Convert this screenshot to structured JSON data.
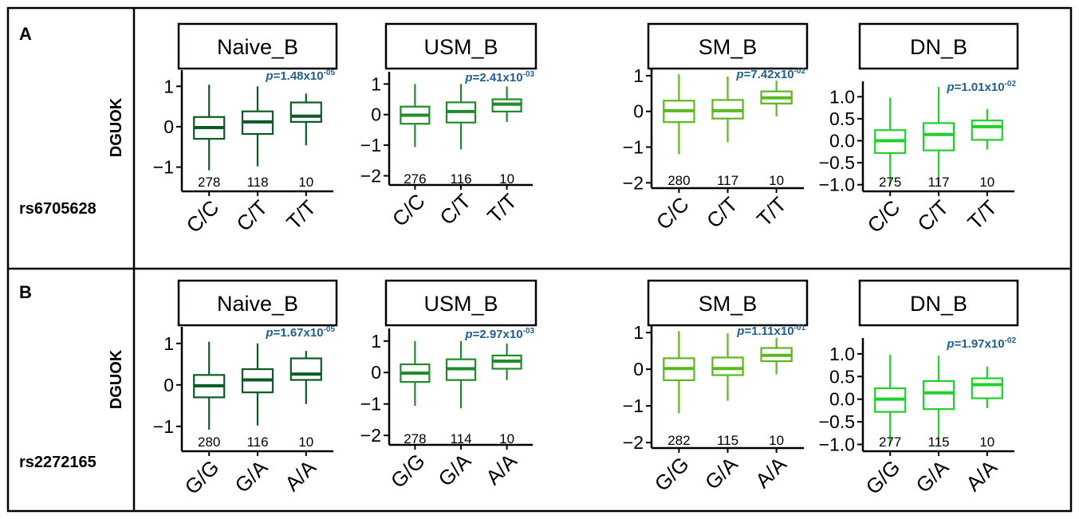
{
  "figure": {
    "colors": {
      "Naive_B": "#0b5b25",
      "USM_B": "#1f8c2c",
      "SM_B": "#5cb81f",
      "DN_B": "#1fd12a",
      "pvalue": "#1f5f8f",
      "border": "#000000"
    },
    "panels": [
      {
        "letter": "A",
        "y_gene_label": "DGUOK",
        "snp": "rs6705628",
        "x_tick_labels": [
          "C/C",
          "C/T",
          "T/T"
        ]
      },
      {
        "letter": "B",
        "y_gene_label": "DGUOK",
        "snp": "rs2272165",
        "x_tick_labels": [
          "G/G",
          "G/A",
          "A/A"
        ]
      }
    ]
  },
  "chart_data": [
    {
      "panel": "A",
      "type": "box",
      "title": "Naive_B",
      "ylabel": "DGUOK",
      "p_value": "1.48x10",
      "p_exp": "-05",
      "categories": [
        "C/C",
        "C/T",
        "T/T"
      ],
      "counts": [
        "278",
        "118",
        "10"
      ],
      "ylim": [
        -1.6,
        1.4
      ],
      "yticks": [
        -1,
        0,
        1
      ],
      "ytick_labels": [
        "−1",
        "0",
        "1"
      ],
      "boxes": [
        {
          "min": -1.08,
          "q1": -0.3,
          "median": -0.02,
          "q3": 0.24,
          "max": 1.04
        },
        {
          "min": -0.98,
          "q1": -0.18,
          "median": 0.12,
          "q3": 0.38,
          "max": 1.0
        },
        {
          "min": -0.46,
          "q1": 0.12,
          "median": 0.26,
          "q3": 0.6,
          "max": 0.82
        }
      ]
    },
    {
      "panel": "A",
      "type": "box",
      "title": "USM_B",
      "ylabel": "",
      "p_value": "2.41x10",
      "p_exp": "-03",
      "categories": [
        "C/C",
        "C/T",
        "T/T"
      ],
      "counts": [
        "276",
        "116",
        "10"
      ],
      "ylim": [
        -2.3,
        1.4
      ],
      "yticks": [
        -2,
        -1,
        0,
        1
      ],
      "ytick_labels": [
        "−2",
        "−1",
        "0",
        "1"
      ],
      "boxes": [
        {
          "min": -1.06,
          "q1": -0.3,
          "median": -0.02,
          "q3": 0.26,
          "max": 1.0
        },
        {
          "min": -1.14,
          "q1": -0.26,
          "median": 0.1,
          "q3": 0.4,
          "max": 1.0
        },
        {
          "min": -0.24,
          "q1": 0.1,
          "median": 0.34,
          "q3": 0.5,
          "max": 0.92
        }
      ]
    },
    {
      "panel": "A",
      "type": "box",
      "title": "SM_B",
      "ylabel": "",
      "p_value": "7.42x10",
      "p_exp": "-02",
      "categories": [
        "C/C",
        "C/T",
        "T/T"
      ],
      "counts": [
        "280",
        "117",
        "10"
      ],
      "ylim": [
        -2.15,
        1.2
      ],
      "yticks": [
        -2,
        -1,
        0,
        1
      ],
      "ytick_labels": [
        "−2",
        "−1",
        "0",
        "1"
      ],
      "boxes": [
        {
          "min": -1.2,
          "q1": -0.3,
          "median": 0.02,
          "q3": 0.3,
          "max": 1.04
        },
        {
          "min": -0.86,
          "q1": -0.2,
          "median": 0.02,
          "q3": 0.32,
          "max": 0.98
        },
        {
          "min": -0.14,
          "q1": 0.22,
          "median": 0.38,
          "q3": 0.56,
          "max": 0.86
        }
      ]
    },
    {
      "panel": "A",
      "type": "box",
      "title": "DN_B",
      "ylabel": "",
      "p_value": "1.01x10",
      "p_exp": "-02",
      "categories": [
        "C/C",
        "C/T",
        "T/T"
      ],
      "counts": [
        "275",
        "117",
        "10"
      ],
      "ylim": [
        -1.15,
        1.35
      ],
      "yticks": [
        -1.0,
        -0.5,
        0.0,
        0.5,
        1.0
      ],
      "ytick_labels": [
        "−1.0",
        "−0.5",
        "0.0",
        "0.5",
        "1.0"
      ],
      "boxes": [
        {
          "min": -1.0,
          "q1": -0.28,
          "median": 0.0,
          "q3": 0.24,
          "max": 0.98
        },
        {
          "min": -1.0,
          "q1": -0.22,
          "median": 0.14,
          "q3": 0.4,
          "max": 1.22
        },
        {
          "min": -0.2,
          "q1": 0.02,
          "median": 0.32,
          "q3": 0.46,
          "max": 0.72
        }
      ]
    },
    {
      "panel": "B",
      "type": "box",
      "title": "Naive_B",
      "ylabel": "DGUOK",
      "p_value": "1.67x10",
      "p_exp": "-05",
      "categories": [
        "G/G",
        "G/A",
        "A/A"
      ],
      "counts": [
        "280",
        "116",
        "10"
      ],
      "ylim": [
        -1.6,
        1.4
      ],
      "yticks": [
        -1,
        0,
        1
      ],
      "ytick_labels": [
        "−1",
        "0",
        "1"
      ],
      "boxes": [
        {
          "min": -1.08,
          "q1": -0.3,
          "median": -0.02,
          "q3": 0.24,
          "max": 1.04
        },
        {
          "min": -0.98,
          "q1": -0.18,
          "median": 0.12,
          "q3": 0.38,
          "max": 1.0
        },
        {
          "min": -0.46,
          "q1": 0.12,
          "median": 0.26,
          "q3": 0.64,
          "max": 0.82
        }
      ]
    },
    {
      "panel": "B",
      "type": "box",
      "title": "USM_B",
      "ylabel": "",
      "p_value": "2.97x10",
      "p_exp": "-03",
      "categories": [
        "G/G",
        "G/A",
        "A/A"
      ],
      "counts": [
        "278",
        "114",
        "10"
      ],
      "ylim": [
        -2.3,
        1.4
      ],
      "yticks": [
        -2,
        -1,
        0,
        1
      ],
      "ytick_labels": [
        "−2",
        "−1",
        "0",
        "1"
      ],
      "boxes": [
        {
          "min": -1.06,
          "q1": -0.3,
          "median": -0.02,
          "q3": 0.26,
          "max": 1.0
        },
        {
          "min": -1.14,
          "q1": -0.24,
          "median": 0.12,
          "q3": 0.42,
          "max": 1.0
        },
        {
          "min": -0.24,
          "q1": 0.12,
          "median": 0.36,
          "q3": 0.54,
          "max": 0.92
        }
      ]
    },
    {
      "panel": "B",
      "type": "box",
      "title": "SM_B",
      "ylabel": "",
      "p_value": "1.11x10",
      "p_exp": "-01",
      "categories": [
        "G/G",
        "G/A",
        "A/A"
      ],
      "counts": [
        "282",
        "115",
        "10"
      ],
      "ylim": [
        -2.15,
        1.2
      ],
      "yticks": [
        -2,
        -1,
        0,
        1
      ],
      "ytick_labels": [
        "−2",
        "−1",
        "0",
        "1"
      ],
      "boxes": [
        {
          "min": -1.2,
          "q1": -0.3,
          "median": 0.02,
          "q3": 0.3,
          "max": 1.04
        },
        {
          "min": -0.86,
          "q1": -0.16,
          "median": 0.02,
          "q3": 0.32,
          "max": 0.98
        },
        {
          "min": -0.14,
          "q1": 0.22,
          "median": 0.38,
          "q3": 0.58,
          "max": 0.86
        }
      ]
    },
    {
      "panel": "B",
      "type": "box",
      "title": "DN_B",
      "ylabel": "",
      "p_value": "1.97x10",
      "p_exp": "-02",
      "categories": [
        "G/G",
        "G/A",
        "A/A"
      ],
      "counts": [
        "277",
        "115",
        "10"
      ],
      "ylim": [
        -1.15,
        1.35
      ],
      "yticks": [
        -1.0,
        -0.5,
        0.0,
        0.5,
        1.0
      ],
      "ytick_labels": [
        "−1.0",
        "−0.5",
        "0.0",
        "0.5",
        "1.0"
      ],
      "boxes": [
        {
          "min": -1.0,
          "q1": -0.28,
          "median": 0.0,
          "q3": 0.24,
          "max": 0.98
        },
        {
          "min": -1.0,
          "q1": -0.22,
          "median": 0.14,
          "q3": 0.4,
          "max": 0.96
        },
        {
          "min": -0.2,
          "q1": 0.02,
          "median": 0.32,
          "q3": 0.46,
          "max": 0.72
        }
      ]
    }
  ]
}
